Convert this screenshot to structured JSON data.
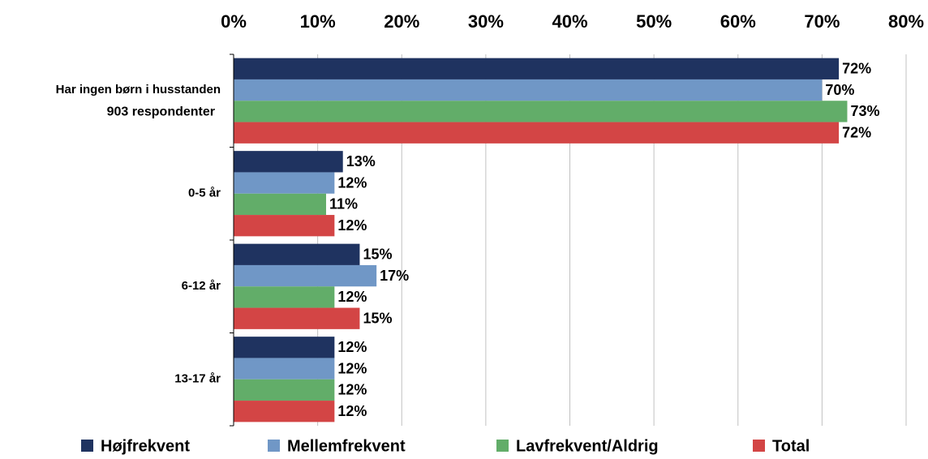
{
  "chart_data": {
    "type": "hbar",
    "categories": [
      "Har ingen børn i husstanden",
      "0-5 år",
      "6-12 år",
      "13-17 år"
    ],
    "annotation": "903 respondenter",
    "series": [
      {
        "name": "Højfrekvent",
        "color": "#1f3360",
        "values": [
          72,
          13,
          15,
          12
        ],
        "value_labels": [
          "72%",
          "13%",
          "15%",
          "12%"
        ]
      },
      {
        "name": "Mellemfrekvent",
        "color": "#7097c6",
        "values": [
          70,
          12,
          17,
          12
        ],
        "value_labels": [
          "70%",
          "12%",
          "17%",
          "12%"
        ]
      },
      {
        "name": "Lavfrekvent/Aldrig",
        "color": "#62ad69",
        "values": [
          73,
          11,
          12,
          12
        ],
        "value_labels": [
          "73%",
          "11%",
          "12%",
          "12%"
        ]
      },
      {
        "name": "Total",
        "color": "#d34545",
        "values": [
          72,
          12,
          15,
          12
        ],
        "value_labels": [
          "72%",
          "12%",
          "15%",
          "12%"
        ]
      }
    ],
    "xlim": [
      0,
      80
    ],
    "xticks": [
      {
        "value": 0,
        "label": "0%"
      },
      {
        "value": 10,
        "label": "10%"
      },
      {
        "value": 20,
        "label": "20%"
      },
      {
        "value": 30,
        "label": "30%"
      },
      {
        "value": 40,
        "label": "40%"
      },
      {
        "value": 50,
        "label": "50%"
      },
      {
        "value": 60,
        "label": "60%"
      },
      {
        "value": 70,
        "label": "70%"
      },
      {
        "value": 80,
        "label": "80%"
      }
    ],
    "grid": true,
    "legend": "bottom"
  }
}
